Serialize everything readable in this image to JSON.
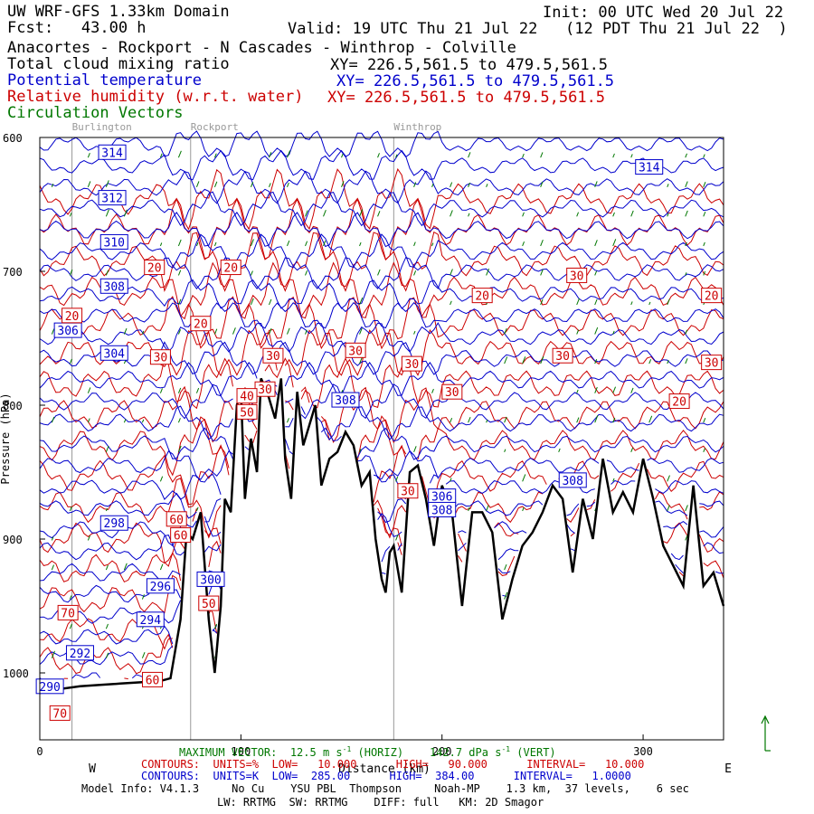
{
  "header": {
    "title": "UW WRF-GFS 1.33km Domain",
    "init": "Init: 00 UTC Wed 20 Jul 22",
    "fcst": "Fcst:   43.00 h",
    "valid": "Valid: 19 UTC Thu 21 Jul 22   (12 PDT Thu 21 Jul 22  )",
    "route": "Anacortes - Rockport - N Cascades - Winthrop - Colville",
    "fields": [
      {
        "name": "Total cloud mixing ratio",
        "xy": "XY= 226.5,561.5 to 479.5,561.5",
        "color": "#000000"
      },
      {
        "name": "Potential temperature",
        "xy": "XY= 226.5,561.5 to 479.5,561.5",
        "color": "#0000cc"
      },
      {
        "name": "Relative humidity (w.r.t. water)",
        "xy": "XY= 226.5,561.5 to 479.5,561.5",
        "color": "#cc0000"
      },
      {
        "name": "Circulation Vectors",
        "xy": "",
        "color": "#007700"
      }
    ]
  },
  "chart_data": {
    "type": "line",
    "title": "",
    "xlabel": "Distance (km)",
    "ylabel": "Pressure (hPa)",
    "xlim": [
      0,
      340
    ],
    "ylim": [
      1050,
      600
    ],
    "x_ticks": [
      0,
      100,
      200,
      300
    ],
    "x_tick_labels": [
      "0",
      "100",
      "200",
      "300"
    ],
    "y_ticks": [
      600,
      700,
      800,
      900,
      1000
    ],
    "y_tick_labels": [
      "600",
      "700",
      "800",
      "900",
      "1000"
    ],
    "x_start_label": "W",
    "x_end_label": "E",
    "locations": [
      {
        "name": "Burlington",
        "x": 16
      },
      {
        "name": "Rockport",
        "x": 75
      },
      {
        "name": "Winthrop",
        "x": 176
      }
    ],
    "terrain": {
      "name": "Surface (terrain)",
      "color": "#000000",
      "x": [
        0,
        10,
        20,
        30,
        40,
        50,
        60,
        65,
        70,
        73,
        76,
        80,
        84,
        87,
        90,
        92,
        95,
        98,
        100,
        102,
        105,
        108,
        110,
        113,
        117,
        120,
        122,
        125,
        128,
        131,
        134,
        137,
        140,
        144,
        148,
        152,
        156,
        160,
        164,
        167,
        170,
        172,
        174,
        176,
        180,
        184,
        188,
        192,
        196,
        200,
        205,
        210,
        215,
        220,
        225,
        230,
        235,
        240,
        245,
        250,
        255,
        260,
        265,
        270,
        275,
        280,
        285,
        290,
        295,
        300,
        305,
        310,
        315,
        320,
        325,
        330,
        335,
        340
      ],
      "y": [
        1015,
        1012,
        1010,
        1009,
        1008,
        1007,
        1006,
        1004,
        960,
        895,
        900,
        880,
        960,
        1000,
        950,
        870,
        880,
        800,
        790,
        870,
        825,
        850,
        780,
        790,
        810,
        780,
        840,
        870,
        790,
        830,
        815,
        800,
        860,
        840,
        835,
        820,
        830,
        860,
        850,
        900,
        930,
        940,
        910,
        905,
        940,
        850,
        845,
        870,
        905,
        860,
        880,
        950,
        880,
        880,
        895,
        960,
        930,
        905,
        895,
        880,
        860,
        870,
        925,
        870,
        900,
        840,
        880,
        865,
        880,
        840,
        870,
        905,
        920,
        935,
        860,
        935,
        925,
        950
      ]
    },
    "theta_label_values": [
      314,
      312,
      310,
      308,
      306,
      304,
      298,
      296,
      294,
      292,
      290,
      300,
      308,
      306,
      308,
      308,
      314
    ],
    "rh_label_values": [
      20,
      20,
      20,
      30,
      30,
      30,
      30,
      30,
      30,
      30,
      40,
      50,
      60,
      60,
      50,
      70,
      70,
      60,
      20,
      20,
      20,
      30,
      30,
      20,
      30
    ],
    "colors": {
      "theta": "#0000cc",
      "rh": "#cc0000",
      "vectors": "#007700",
      "terrain": "#000000",
      "locations": "#999999"
    }
  },
  "footer": {
    "max_vector": "MAXIMUM VECTOR:  12.5 m s",
    "max_vector_sup": "-1",
    "max_vector_horiz": " (HORIZ)    142.7 dPa s",
    "max_vector_vert": " (VERT)",
    "rh_contours": "CONTOURS:  UNITS=%  LOW=   10.000      HIGH=   90.000      INTERVAL=   10.000",
    "theta_contours": "CONTOURS:  UNITS=K  LOW=  285.00      HIGH=  384.00      INTERVAL=   1.0000",
    "model_info": "Model Info: V4.1.3     No Cu    YSU PBL  Thompson     Noah-MP    1.3 km,  37 levels,    6 sec",
    "physics": "LW: RRTMG  SW: RRTMG    DIFF: full   KM: 2D Smagor"
  }
}
